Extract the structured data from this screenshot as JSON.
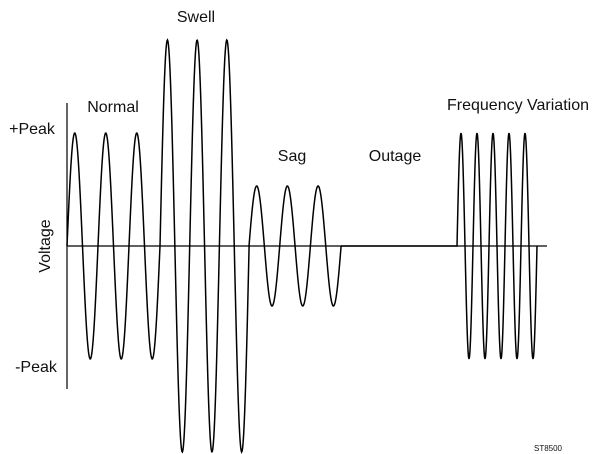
{
  "waveforms": {
    "normal": "Normal",
    "swell": "Swell",
    "sag": "Sag",
    "outage": "Outage",
    "frequency_variation": "Frequency Variation"
  },
  "axis": {
    "label": "Voltage",
    "positive_peak": "+Peak",
    "negative_peak": "-Peak"
  },
  "figure_id": "ST8500"
}
